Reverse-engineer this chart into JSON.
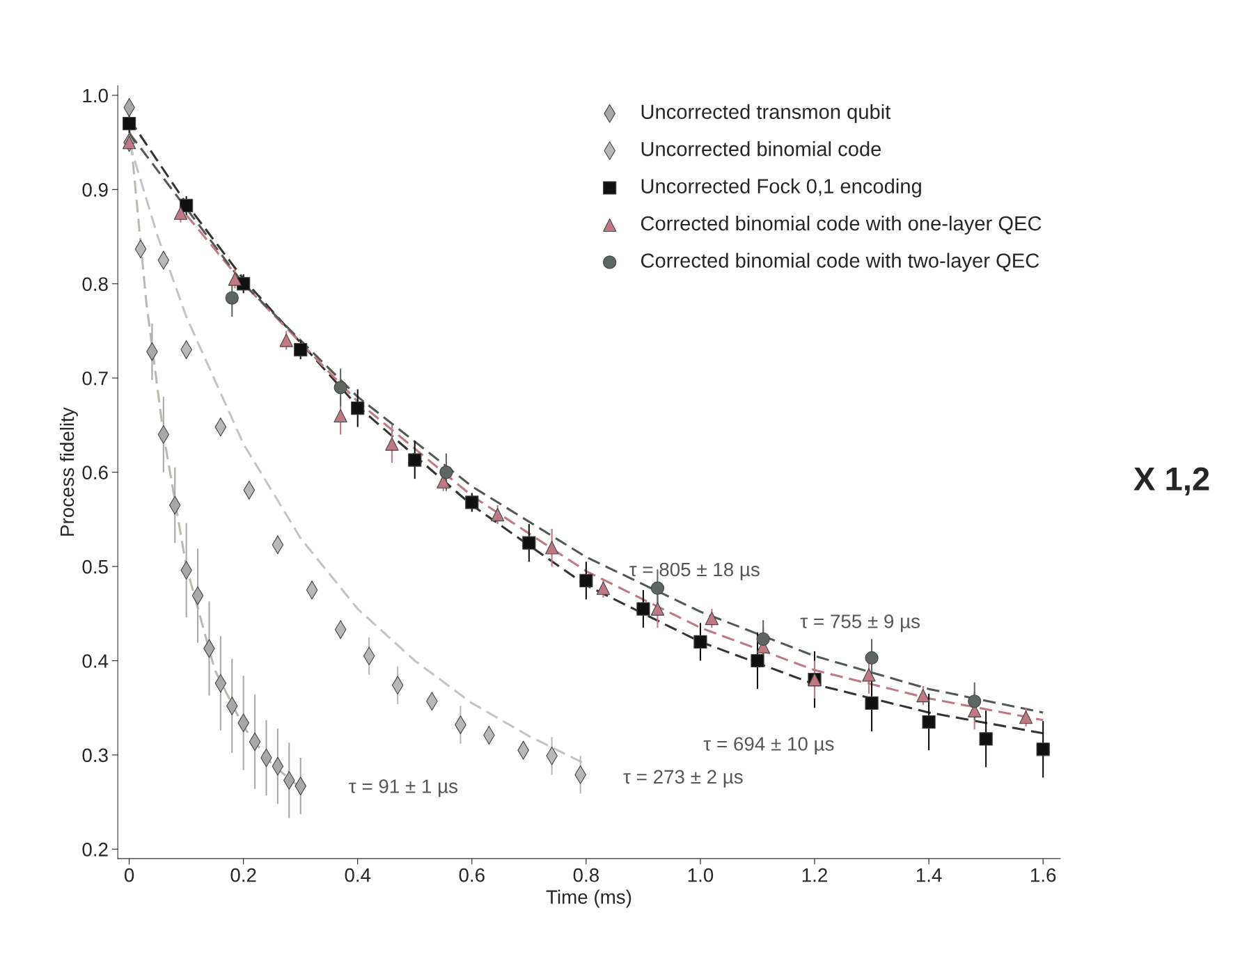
{
  "chart_data": {
    "type": "scatter",
    "xlabel": "Time (ms)",
    "ylabel": "Process fidelity",
    "xlim": [
      -0.02,
      1.63
    ],
    "ylim": [
      0.19,
      1.01
    ],
    "xticks": [
      0,
      0.2,
      0.4,
      0.6,
      0.8,
      {
        "value": 1.0,
        "label": "1.0"
      },
      1.2,
      1.4,
      1.6
    ],
    "yticks": [
      0.2,
      0.3,
      0.4,
      0.5,
      0.6,
      0.7,
      0.8,
      0.9,
      {
        "value": 1.0,
        "label": "1.0"
      }
    ],
    "grid": false,
    "legend": "top right",
    "series": [
      {
        "name": "Uncorrected transmon qubit",
        "marker": "diamond",
        "color": "#a8a8a8",
        "x": [
          0,
          0.04,
          0.06,
          0.08,
          0.1,
          0.12,
          0.14,
          0.16,
          0.18,
          0.2,
          0.22,
          0.24,
          0.26,
          0.28,
          0.3
        ],
        "values": [
          0.987,
          0.728,
          0.64,
          0.565,
          0.496,
          0.469,
          0.413,
          0.376,
          0.352,
          0.334,
          0.314,
          0.297,
          0.288,
          0.273,
          0.267
        ],
        "errors": [
          0.01,
          0.03,
          0.04,
          0.04,
          0.05,
          0.05,
          0.05,
          0.05,
          0.05,
          0.05,
          0.05,
          0.04,
          0.04,
          0.04,
          0.03
        ]
      },
      {
        "name": "Uncorrected binomial code",
        "marker": "diamond",
        "color": "#b8b8b8",
        "x": [
          0,
          0.02,
          0.06,
          0.1,
          0.16,
          0.21,
          0.26,
          0.32,
          0.37,
          0.42,
          0.47,
          0.53,
          0.58,
          0.63,
          0.69,
          0.74,
          0.79
        ],
        "values": [
          0.95,
          0.837,
          0.825,
          0.73,
          0.648,
          0.581,
          0.523,
          0.475,
          0.433,
          0.405,
          0.374,
          0.357,
          0.332,
          0.321,
          0.305,
          0.299,
          0.279
        ],
        "errors": [
          0.01,
          0.01,
          0.01,
          0.01,
          0.01,
          0.01,
          0.01,
          0.01,
          0.01,
          0.02,
          0.02,
          0.01,
          0.02,
          0.01,
          0.01,
          0.02,
          0.02
        ]
      },
      {
        "name": "Uncorrected Fock 0,1 encoding",
        "marker": "square",
        "color": "#111111",
        "x": [
          0,
          0.1,
          0.2,
          0.3,
          0.4,
          0.5,
          0.6,
          0.7,
          0.8,
          0.9,
          1.0,
          1.1,
          1.2,
          1.3,
          1.4,
          1.5,
          1.6
        ],
        "values": [
          0.97,
          0.883,
          0.8,
          0.73,
          0.668,
          0.613,
          0.568,
          0.525,
          0.485,
          0.455,
          0.42,
          0.4,
          0.38,
          0.355,
          0.335,
          0.317,
          0.306
        ],
        "errors": [
          0.01,
          0.01,
          0.01,
          0.01,
          0.02,
          0.02,
          0.01,
          0.02,
          0.02,
          0.02,
          0.02,
          0.03,
          0.03,
          0.03,
          0.03,
          0.03,
          0.03
        ]
      },
      {
        "name": "Corrected binomial code with one-layer QEC",
        "marker": "triangle",
        "color": "#c07882",
        "x": [
          0,
          0.09,
          0.185,
          0.275,
          0.37,
          0.46,
          0.55,
          0.645,
          0.74,
          0.83,
          0.925,
          1.02,
          1.11,
          1.2,
          1.295,
          1.39,
          1.48,
          1.57
        ],
        "values": [
          0.95,
          0.875,
          0.805,
          0.74,
          0.66,
          0.63,
          0.59,
          0.555,
          0.52,
          0.477,
          0.455,
          0.445,
          0.415,
          0.38,
          0.385,
          0.363,
          0.347,
          0.34
        ],
        "errors": [
          null,
          0.01,
          0.01,
          0.01,
          0.02,
          0.02,
          0.01,
          0.01,
          0.02,
          0.01,
          0.02,
          0.01,
          0.02,
          0.02,
          0.02,
          0.01,
          0.02,
          0.01
        ]
      },
      {
        "name": "Corrected binomial code with two-layer QEC",
        "marker": "circle",
        "color": "#5e6662",
        "x": [
          0.18,
          0.37,
          0.555,
          0.925,
          1.11,
          1.3,
          1.48
        ],
        "values": [
          0.785,
          0.69,
          0.6,
          0.477,
          0.423,
          0.403,
          0.357
        ],
        "errors": [
          0.02,
          0.02,
          0.02,
          0.02,
          0.02,
          0.02,
          0.02
        ]
      },
      {
        "type": "line",
        "line_style": "dashed",
        "color": "#b4bcb0",
        "x": [
          0,
          0.03,
          0.06,
          0.1,
          0.15,
          0.2,
          0.25,
          0.3
        ],
        "values": [
          0.97,
          0.78,
          0.64,
          0.5,
          0.39,
          0.33,
          0.29,
          0.265
        ]
      },
      {
        "type": "line",
        "line_style": "dashed",
        "color": "#c4c4c4",
        "x": [
          0,
          0.05,
          0.1,
          0.2,
          0.3,
          0.4,
          0.5,
          0.6,
          0.7,
          0.8
        ],
        "values": [
          0.95,
          0.85,
          0.765,
          0.63,
          0.53,
          0.455,
          0.4,
          0.355,
          0.32,
          0.29
        ]
      },
      {
        "type": "line",
        "line_style": "dashed",
        "color": "#333333",
        "x": [
          0,
          0.1,
          0.2,
          0.4,
          0.6,
          0.8,
          1.0,
          1.2,
          1.4,
          1.6
        ],
        "values": [
          0.975,
          0.885,
          0.805,
          0.67,
          0.565,
          0.48,
          0.42,
          0.375,
          0.345,
          0.323
        ]
      },
      {
        "type": "line",
        "line_style": "dashed",
        "color": "#c07882",
        "x": [
          0.1,
          0.2,
          0.4,
          0.6,
          0.8,
          1.0,
          1.2,
          1.4,
          1.6
        ],
        "values": [
          0.873,
          0.8,
          0.675,
          0.575,
          0.495,
          0.435,
          0.39,
          0.36,
          0.337
        ]
      },
      {
        "type": "line",
        "line_style": "dashed",
        "color": "#4f5a55",
        "x": [
          0,
          0.2,
          0.4,
          0.6,
          0.8,
          1.0,
          1.2,
          1.4,
          1.6
        ],
        "values": [
          0.96,
          0.8,
          0.68,
          0.585,
          0.51,
          0.452,
          0.405,
          0.37,
          0.345
        ]
      }
    ],
    "annotations": [
      "τ = 91 ± 1 µs",
      "τ = 273 ± 2 µs",
      "τ = 694 ± 10 µs",
      "τ = 755 ± 9 µs",
      "τ = 805 ± 18 µs",
      "X 1,2"
    ]
  }
}
